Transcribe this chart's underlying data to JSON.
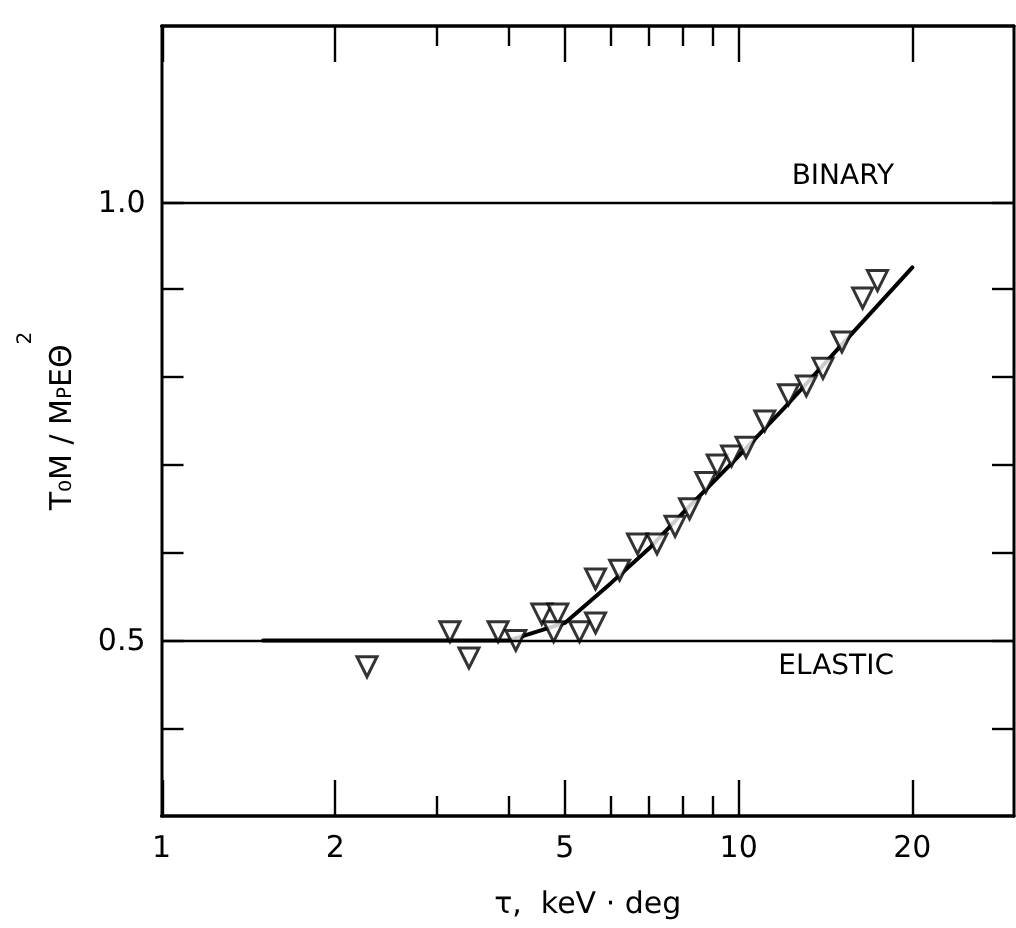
{
  "chart_data": {
    "type": "scatter",
    "xlabel": "τ,  keV · deg",
    "ylabel": "T₀M / M$_{P}$EΘ$^{2}$",
    "log": "x",
    "marker": "triangle",
    "grid": false,
    "xlim": [
      1,
      30
    ],
    "xticks": [
      1,
      2,
      5,
      10,
      20,
      {
        "value": 3,
        "label": null
      },
      {
        "value": 4,
        "label": null
      },
      {
        "value": 6,
        "label": null
      },
      {
        "value": 7,
        "label": null
      },
      {
        "value": 8,
        "label": null
      },
      {
        "value": 9,
        "label": null
      }
    ],
    "ylim": [
      0.3,
      1.2
    ],
    "yticks": [
      {
        "value": 0.4,
        "label": null
      },
      0.5,
      {
        "value": 0.6,
        "label": null
      },
      {
        "value": 0.7,
        "label": null
      },
      {
        "value": 0.8,
        "label": null
      },
      {
        "value": 0.9,
        "label": null
      },
      {
        "value": 1,
        "label": "1.0"
      }
    ],
    "series": [
      {
        "color": "#000000",
        "x": [
          2.27,
          3.16,
          3.41,
          3.83,
          4.11,
          4.56,
          4.86,
          4.78,
          5.3,
          5.65,
          5.65,
          6.22,
          6.68,
          7.22,
          7.76,
          8.22,
          8.77,
          9.18,
          9.72,
          10.3,
          11.1,
          12.2,
          13.1,
          14.0,
          15.1,
          16.4,
          17.4
        ],
        "values": [
          0.47,
          0.51,
          0.48,
          0.51,
          0.5,
          0.53,
          0.53,
          0.51,
          0.51,
          0.52,
          0.57,
          0.58,
          0.61,
          0.61,
          0.63,
          0.65,
          0.68,
          0.7,
          0.71,
          0.72,
          0.75,
          0.78,
          0.79,
          0.81,
          0.84,
          0.89,
          0.91
        ]
      },
      {
        "type": "line",
        "color": "#000000",
        "marker": "none",
        "x": [
          1.5,
          4,
          5,
          6,
          7,
          8,
          10,
          12,
          15,
          20
        ],
        "values": [
          0.5,
          0.5,
          0.52,
          0.565,
          0.605,
          0.645,
          0.71,
          0.765,
          0.835,
          0.925
        ]
      }
    ],
    "ref_lines": [
      {
        "axis": "y",
        "value": 1,
        "label": "BINARY",
        "color": "#000000"
      },
      {
        "axis": "y",
        "value": 0.5,
        "label": "ELASTIC",
        "color": "#000000"
      }
    ]
  }
}
